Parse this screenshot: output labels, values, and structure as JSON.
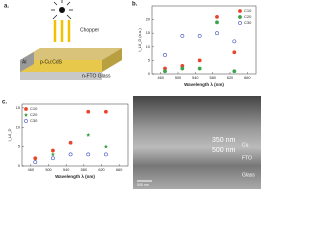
{
  "schematic": {
    "panel": "a.",
    "chopper": "Chopper",
    "layers": [
      "Al",
      "p-Cu:CdS",
      "n-FTO Glass"
    ]
  },
  "chart_data": [
    {
      "type": "scatter",
      "panel": "b.",
      "xlabel": "Wavelength λ (nm)",
      "ylabel": "I_L/I_D (a.u.)",
      "xlim": [
        440,
        680
      ],
      "xticks": [
        460,
        500,
        540,
        580,
        620,
        660
      ],
      "ylim": [
        0,
        25
      ],
      "yticks": [
        0,
        5,
        10,
        15,
        20
      ],
      "legend": "top-right",
      "x": [
        470,
        510,
        550,
        590,
        630
      ],
      "series": [
        {
          "name": "C10",
          "color": "#e8452c",
          "marker": "circle",
          "values": [
            2,
            3,
            5,
            21,
            8
          ]
        },
        {
          "name": "C20",
          "color": "#3aa34a",
          "marker": "circle",
          "values": [
            1,
            2,
            2,
            19,
            1
          ]
        },
        {
          "name": "C30",
          "color": "#3b4fc4",
          "marker": "open",
          "values": [
            7,
            14,
            14,
            15,
            12
          ]
        }
      ]
    },
    {
      "type": "scatter",
      "panel": "c.",
      "xlabel": "Wavelength λ (nm)",
      "ylabel": "I_L/I_D",
      "xlim": [
        440,
        680
      ],
      "xticks": [
        460,
        500,
        540,
        580,
        620,
        660
      ],
      "ylim": [
        0,
        16
      ],
      "yticks": [
        0,
        5,
        10,
        15
      ],
      "legend": "top-left",
      "x": [
        470,
        510,
        550,
        590,
        630
      ],
      "series": [
        {
          "name": "C10",
          "color": "#e8452c",
          "marker": "circle",
          "values": [
            2,
            4,
            6,
            14,
            14
          ]
        },
        {
          "name": "C20",
          "color": "#3aa34a",
          "marker": "star",
          "values": [
            1,
            3,
            3,
            8,
            5
          ]
        },
        {
          "name": "C30",
          "color": "#3b4fc4",
          "marker": "open",
          "values": [
            1,
            2,
            3,
            3,
            3
          ]
        }
      ]
    }
  ],
  "sem": {
    "labels": [
      "350 nm",
      "500 nm",
      "Cu",
      "FTO",
      "Glass"
    ],
    "scale": "500 nm"
  }
}
